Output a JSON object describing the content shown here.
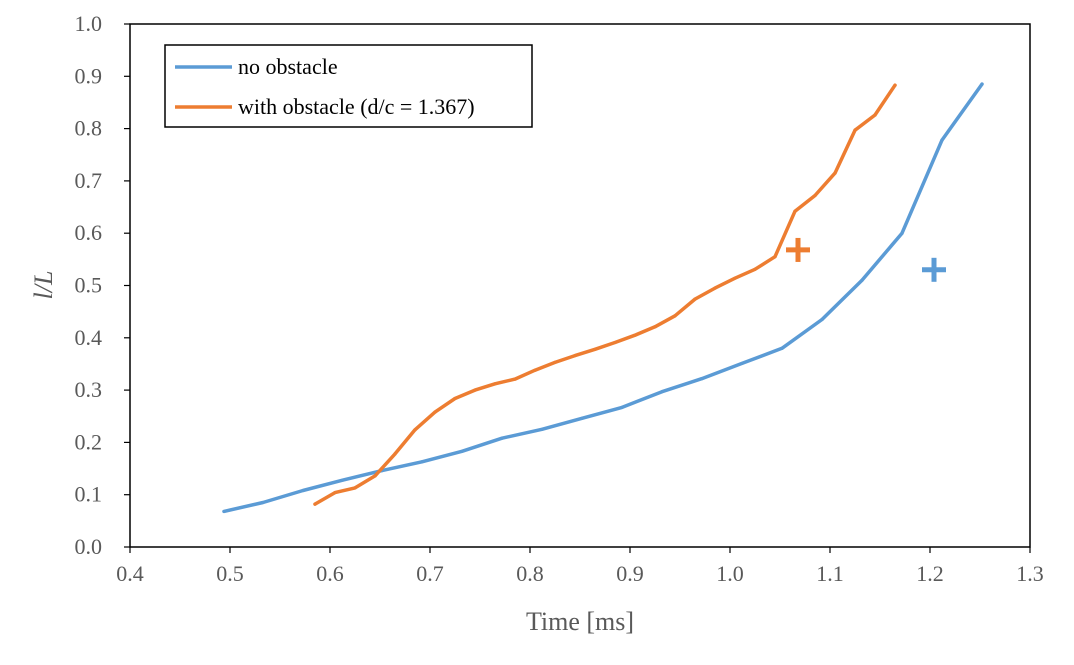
{
  "chart_data": {
    "type": "line",
    "title": "",
    "xlabel": "Time [ms]",
    "ylabel": "l/L",
    "xlim": [
      0.4,
      1.3
    ],
    "ylim": [
      0.0,
      1.0
    ],
    "xticks": [
      "0.4",
      "0.5",
      "0.6",
      "0.7",
      "0.8",
      "0.9",
      "1.0",
      "1.1",
      "1.2",
      "1.3"
    ],
    "yticks": [
      "0.0",
      "0.1",
      "0.2",
      "0.3",
      "0.4",
      "0.5",
      "0.6",
      "0.7",
      "0.8",
      "0.9",
      "1.0"
    ],
    "grid": false,
    "legend_position": "top-left",
    "series": [
      {
        "name": "no obstacle",
        "color": "#5B9BD5",
        "points": [
          [
            0.494,
            0.068
          ],
          [
            0.533,
            0.085
          ],
          [
            0.573,
            0.108
          ],
          [
            0.613,
            0.128
          ],
          [
            0.652,
            0.146
          ],
          [
            0.692,
            0.163
          ],
          [
            0.732,
            0.183
          ],
          [
            0.772,
            0.208
          ],
          [
            0.812,
            0.225
          ],
          [
            0.852,
            0.246
          ],
          [
            0.892,
            0.267
          ],
          [
            0.932,
            0.297
          ],
          [
            0.972,
            0.322
          ],
          [
            1.012,
            0.351
          ],
          [
            1.052,
            0.38
          ],
          [
            1.092,
            0.435
          ],
          [
            1.132,
            0.51
          ],
          [
            1.172,
            0.6
          ],
          [
            1.212,
            0.778
          ],
          [
            1.252,
            0.885
          ]
        ],
        "marker": {
          "shape": "plus",
          "x": 1.204,
          "y": 0.53
        }
      },
      {
        "name": "with obstacle (d/c = 1.367)",
        "color": "#ED7D31",
        "points": [
          [
            0.585,
            0.082
          ],
          [
            0.605,
            0.104
          ],
          [
            0.625,
            0.113
          ],
          [
            0.645,
            0.136
          ],
          [
            0.665,
            0.178
          ],
          [
            0.685,
            0.224
          ],
          [
            0.705,
            0.258
          ],
          [
            0.725,
            0.284
          ],
          [
            0.745,
            0.3
          ],
          [
            0.765,
            0.312
          ],
          [
            0.785,
            0.321
          ],
          [
            0.805,
            0.338
          ],
          [
            0.825,
            0.353
          ],
          [
            0.845,
            0.366
          ],
          [
            0.865,
            0.378
          ],
          [
            0.885,
            0.391
          ],
          [
            0.905,
            0.405
          ],
          [
            0.925,
            0.421
          ],
          [
            0.945,
            0.442
          ],
          [
            0.965,
            0.474
          ],
          [
            0.985,
            0.495
          ],
          [
            1.005,
            0.514
          ],
          [
            1.025,
            0.531
          ],
          [
            1.045,
            0.555
          ],
          [
            1.065,
            0.642
          ],
          [
            1.085,
            0.672
          ],
          [
            1.105,
            0.715
          ],
          [
            1.125,
            0.797
          ],
          [
            1.145,
            0.826
          ],
          [
            1.165,
            0.883
          ]
        ],
        "marker": {
          "shape": "plus",
          "x": 1.068,
          "y": 0.568
        }
      }
    ]
  }
}
